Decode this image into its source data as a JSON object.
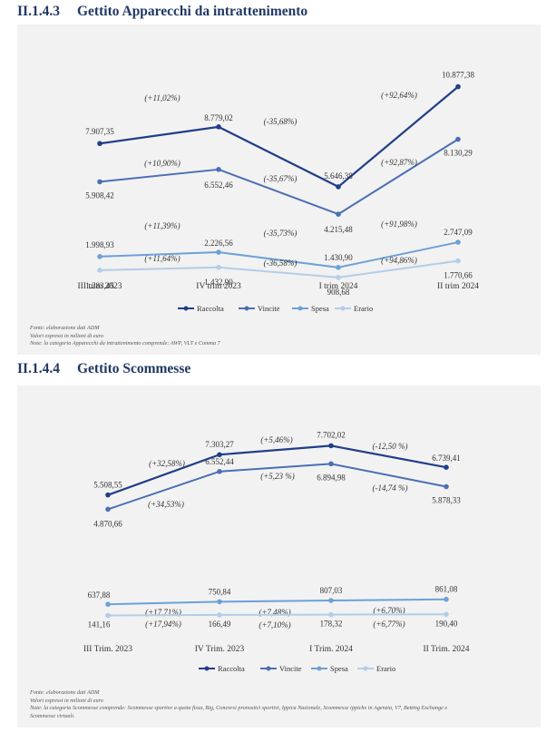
{
  "colors": {
    "raccolta": "#213e89",
    "vincite": "#4a6fb5",
    "spesa": "#6da1d6",
    "erario": "#b3cde8",
    "panel_bg": "#f2f2f2",
    "title": "#1f3864"
  },
  "sections": [
    {
      "number": "II.1.4.3",
      "title": "Gettito Apparecchi da intrattenimento"
    },
    {
      "number": "II.1.4.4",
      "title": "Gettito Scommesse"
    }
  ],
  "notes": [
    [
      "Fonte: elaborazione dati ADM",
      "Valori espressi in milioni di euro",
      "Note: la categoria Apparecchi da intrattenimento comprende: AWP, VLT e Comma 7"
    ],
    [
      "Fonte: elaborazione dati ADM",
      "Valori espressi in milioni di euro",
      "Note: la categoria Scommesse comprende: Scommesse sportive a quota fissa, Big, Concorsi pronostici sportivi, Ippica Nazionale, Scommesse ippiche in Agenzia, V7, Betting Exchange e",
      "Scommesse virtuali."
    ]
  ],
  "chart_data": [
    {
      "type": "line",
      "categories": [
        "III trim 2023",
        "IV trim 2023",
        "I trim 2024",
        "II trim 2024"
      ],
      "series": [
        {
          "name": "Raccolta",
          "values": [
            7907.35,
            8779.02,
            5646.38,
            10877.38
          ],
          "value_labels": [
            "7.907,35",
            "8.779,02",
            "5.646,38",
            "10.877,38"
          ],
          "change_labels": [
            "(+11,02%)",
            "(-35,68%)",
            "(+92,64%)"
          ]
        },
        {
          "name": "Vincite",
          "values": [
            5908.42,
            6552.46,
            4215.48,
            8130.29
          ],
          "value_labels": [
            "5.908,42",
            "6.552,46",
            "4.215,48",
            "8.130,29"
          ],
          "change_labels": [
            "(+10,90%)",
            "(-35,67%)",
            "(+92,87%)"
          ]
        },
        {
          "name": "Spesa",
          "values": [
            1998.93,
            2226.56,
            1430.9,
            2747.09
          ],
          "value_labels": [
            "1.998,93",
            "2.226,56",
            "1.430,90",
            "2.747,09"
          ],
          "change_labels": [
            "(+11,39%)",
            "(-35,73%)",
            "(+91,98%)"
          ]
        },
        {
          "name": "Erario",
          "values": [
            1283.45,
            1432.9,
            908.68,
            1770.66
          ],
          "value_labels": [
            "1.283,45",
            "1.432,90",
            "908,68",
            "1.770,66"
          ],
          "change_labels": [
            "(+11,64%)",
            "(-36,58%)",
            "(+94,86%)"
          ]
        }
      ],
      "legend_position": "bottom",
      "grid": false
    },
    {
      "type": "line",
      "categories": [
        "III Trim. 2023",
        "IV Trim. 2023",
        "I Trim. 2024",
        "II Trim. 2024"
      ],
      "series": [
        {
          "name": "Raccolta",
          "values": [
            5508.55,
            7303.27,
            7702.02,
            6739.41
          ],
          "value_labels": [
            "5.508,55",
            "7.303,27",
            "7.702,02",
            "6.739,41"
          ],
          "change_labels": [
            "(+32,58%)",
            "(+5,46%)",
            "(-12,50 %)"
          ]
        },
        {
          "name": "Vincite",
          "values": [
            4870.66,
            6552.44,
            6894.98,
            5878.33
          ],
          "value_labels": [
            "4.870,66",
            "6.552,44",
            "6.894,98",
            "5.878,33"
          ],
          "change_labels": [
            "(+34,53%)",
            "(+5,23 %)",
            "(-14,74 %)"
          ]
        },
        {
          "name": "Spesa",
          "values": [
            637.88,
            750.84,
            807.03,
            861.08
          ],
          "value_labels": [
            "637,88",
            "750,84",
            "807,03",
            "861,08"
          ],
          "change_labels": [
            "(+17,71%)",
            "(+7,48%)",
            "(+6,70%)"
          ]
        },
        {
          "name": "Erario",
          "values": [
            141.16,
            166.49,
            178.32,
            190.4
          ],
          "value_labels": [
            "141,16",
            "166,49",
            "178,32",
            "190,40"
          ],
          "change_labels": [
            "(+17,94%)",
            "(+7,10%)",
            "(+6,77%)"
          ]
        }
      ],
      "legend_position": "bottom",
      "grid": false
    }
  ]
}
